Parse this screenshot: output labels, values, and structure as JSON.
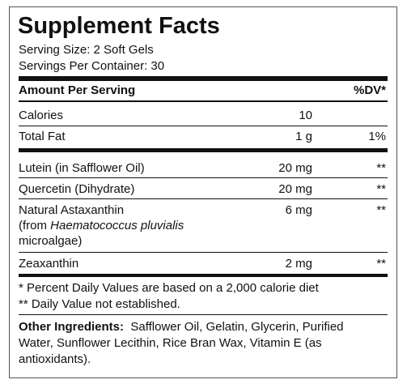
{
  "header": {
    "title": "Supplement Facts",
    "serving_size": "Serving Size: 2 Soft Gels",
    "servings_per_container": "Servings Per Container: 30"
  },
  "columns": {
    "amount": "Amount Per Serving",
    "dv": "%DV*"
  },
  "rows": [
    {
      "name": "Calories",
      "amount": "10",
      "dv": ""
    },
    {
      "name": "Total Fat",
      "amount": "1 g",
      "dv": "1%"
    },
    {
      "name": "Lutein (in Safflower Oil)",
      "amount": "20 mg",
      "dv": "**"
    },
    {
      "name": "Quercetin (Dihydrate)",
      "amount": "20 mg",
      "dv": "**"
    },
    {
      "name": "Natural Astaxanthin",
      "source_prefix": "(from",
      "source_species": "Haematococcus pluvialis",
      "source_suffix": "microalgae)",
      "amount": "6 mg",
      "dv": "**"
    },
    {
      "name": "Zeaxanthin",
      "amount": "2 mg",
      "dv": "**"
    }
  ],
  "footnotes": [
    "* Percent Daily Values are based on a 2,000 calorie diet",
    "** Daily Value not established."
  ],
  "other_ingredients": {
    "label": "Other Ingredients:",
    "text": "Safflower Oil, Gelatin, Glycerin, Purified Water, Sunflower Lecithin, Rice Bran Wax, Vitamin E (as antioxidants)."
  }
}
